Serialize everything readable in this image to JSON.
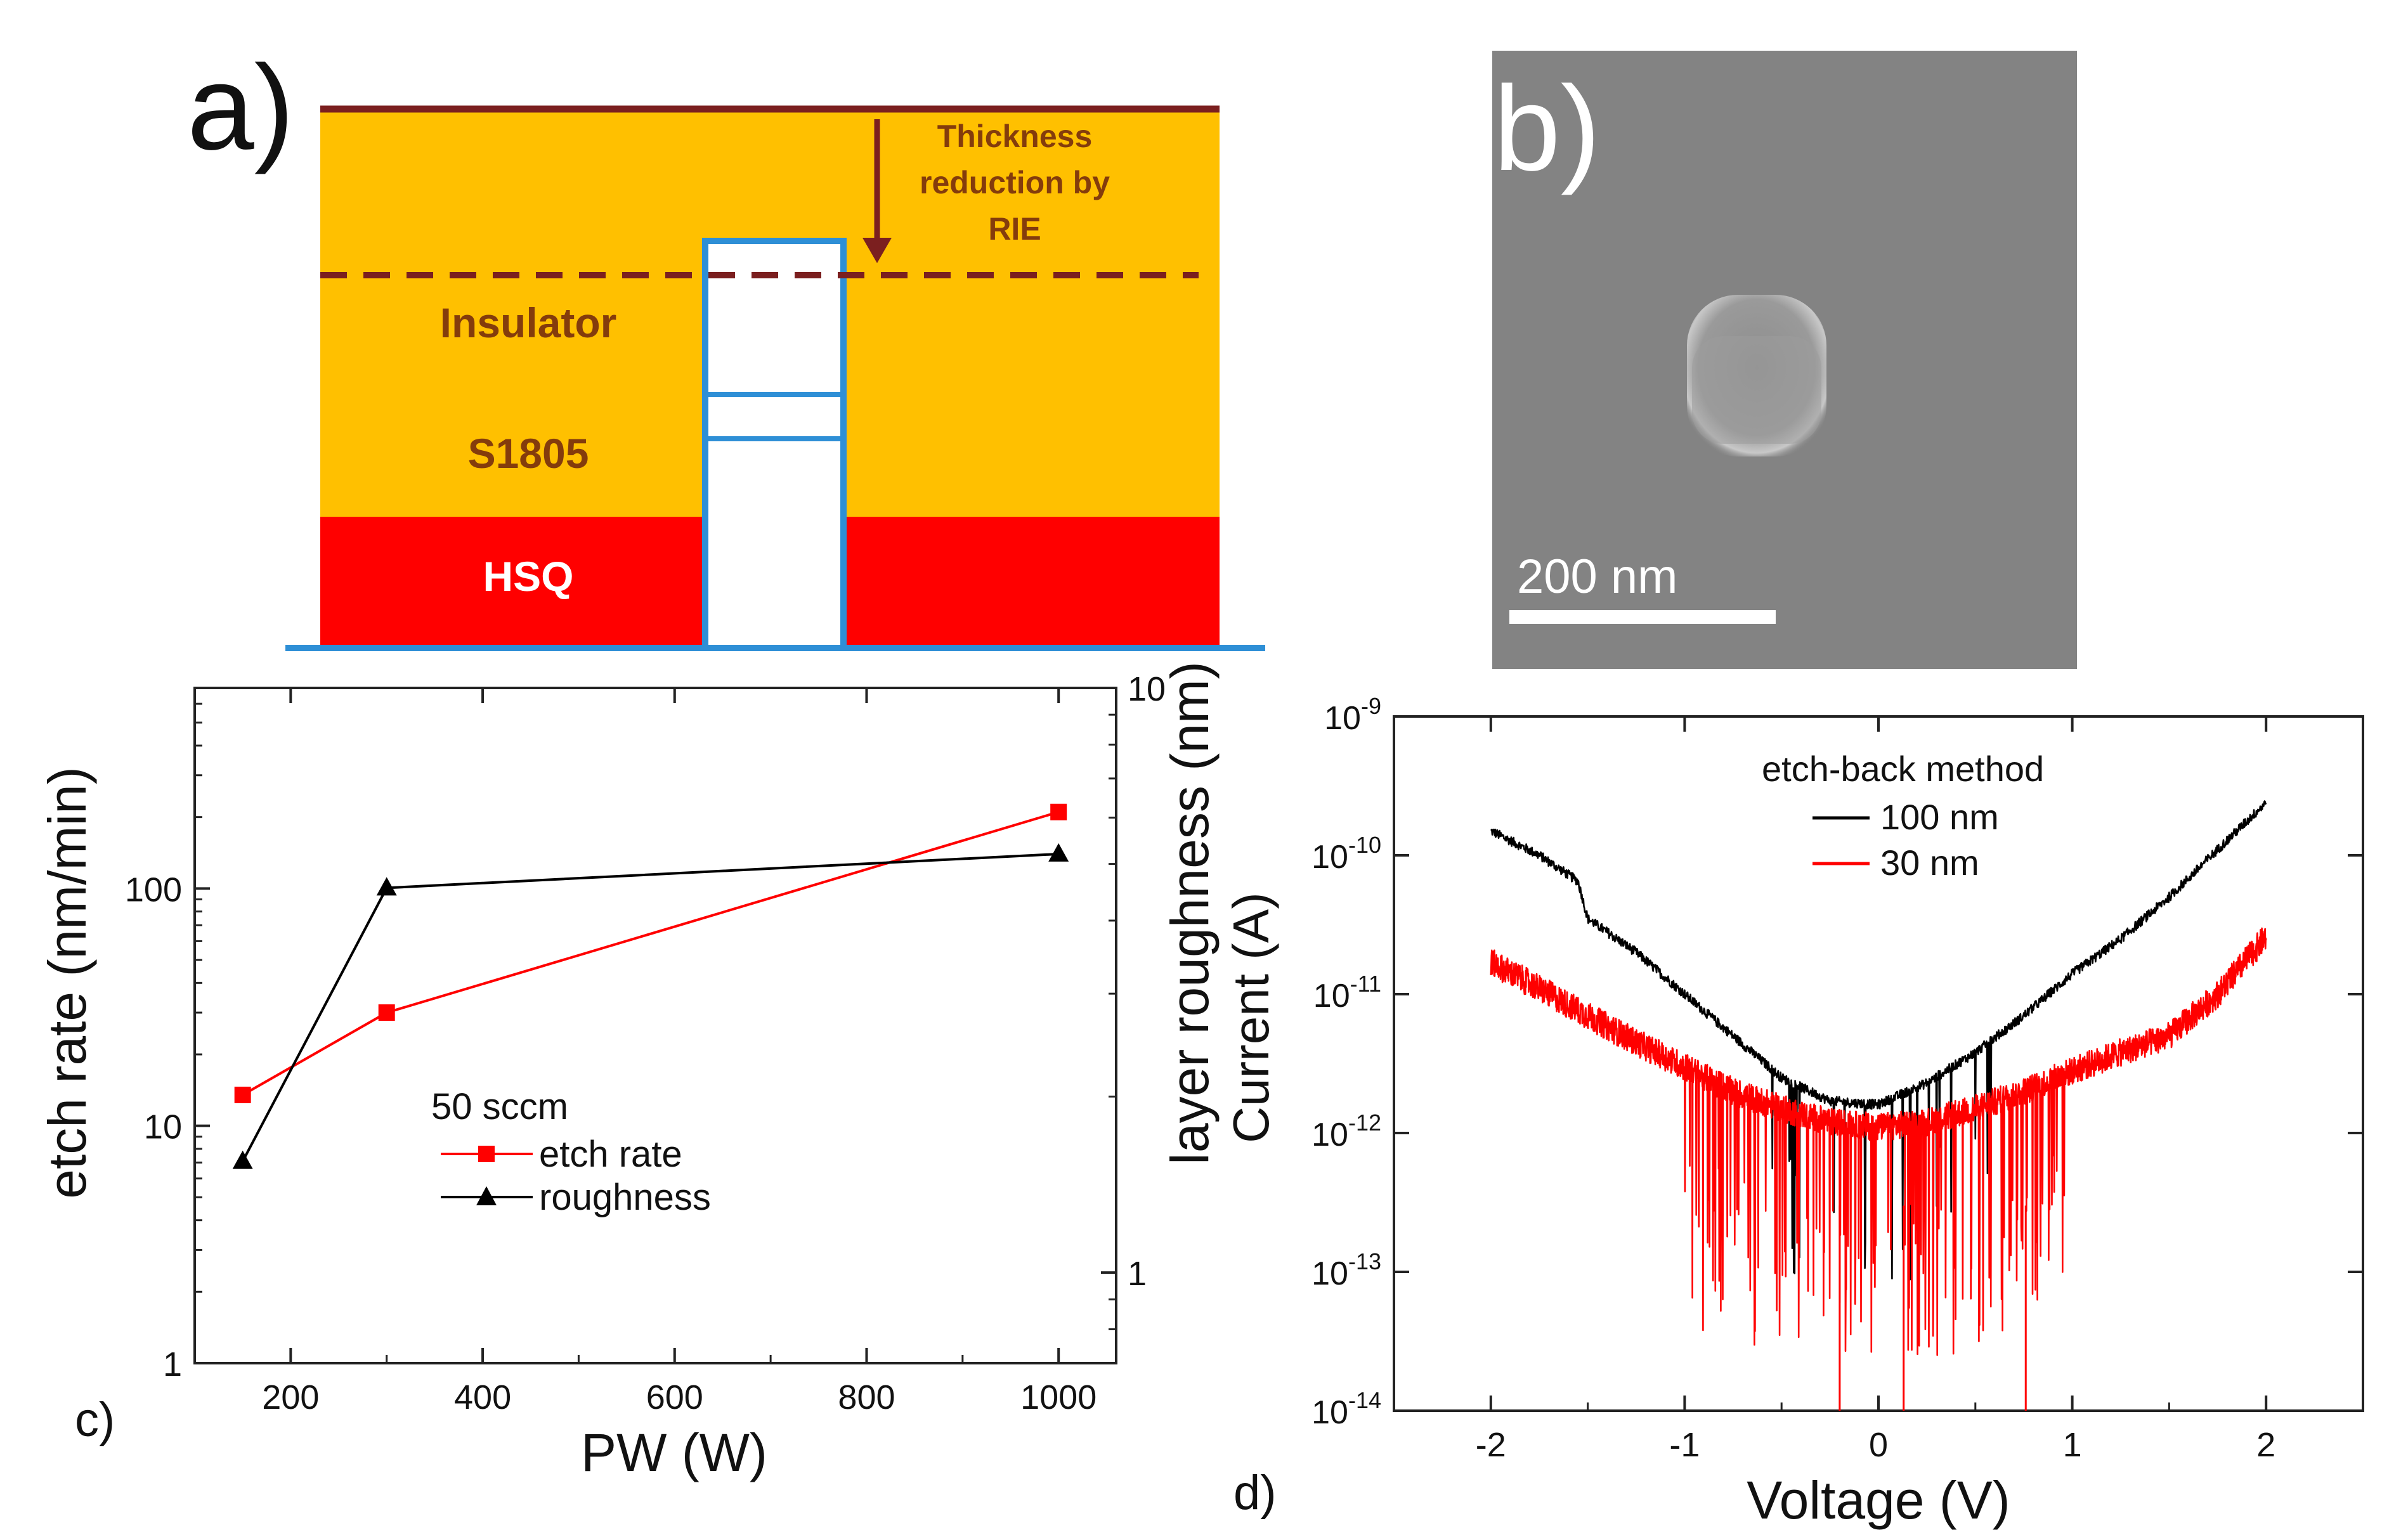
{
  "colors": {
    "insulator_fill": "#FFC000",
    "hsq_fill": "#FF0000",
    "pillar_outline": "#2E8FD6",
    "dark_red_text": "#843C0C",
    "top_line": "#7B1F1F",
    "sem_background": "#838383",
    "etch_rate_series": "#ff0000",
    "roughness_series": "#000000"
  },
  "panel_a": {
    "label": "a)",
    "annotation_line1": "Thickness",
    "annotation_line2": "reduction by",
    "annotation_line3": "RIE",
    "layer_insulator": "Insulator",
    "layer_s1805": "S1805",
    "layer_hsq": "HSQ"
  },
  "panel_b": {
    "label": "b)",
    "scale_bar_text": "200 nm"
  },
  "chart_data": [
    {
      "panel": "c)",
      "type": "line",
      "xlabel": "PW (W)",
      "ylabel": "etch rate (nm/min)",
      "y2label": "layer roughness (nm)",
      "xlim": [
        100,
        1060
      ],
      "xticks": [
        200,
        400,
        600,
        800,
        1000
      ],
      "yscale": "log",
      "ylim": [
        1,
        700
      ],
      "yticks": [
        1,
        10,
        100
      ],
      "y2scale": "log",
      "y2lim": [
        0.7,
        10
      ],
      "y2ticks": [
        1,
        10
      ],
      "legend_title": "50 sccm",
      "series": [
        {
          "name": "etch rate",
          "axis": "left",
          "marker": "square",
          "color": "#ff0000",
          "x": [
            150,
            300,
            1000
          ],
          "y": [
            13.5,
            30,
            210
          ]
        },
        {
          "name": "roughness",
          "axis": "right",
          "marker": "triangle",
          "color": "#000000",
          "x": [
            150,
            300,
            1000
          ],
          "y": [
            1.55,
            4.55,
            5.2
          ]
        }
      ]
    },
    {
      "panel": "d)",
      "type": "line",
      "xlabel": "Voltage (V)",
      "ylabel": "Current (A)",
      "xlim": [
        -2.5,
        2.5
      ],
      "xticks": [
        -2,
        -1,
        0,
        1,
        2
      ],
      "yscale": "log",
      "ylim": [
        "1e-14",
        "1e-9"
      ],
      "yticks": [
        {
          "base": "10",
          "exp": "-14"
        },
        {
          "base": "10",
          "exp": "-13"
        },
        {
          "base": "10",
          "exp": "-12"
        },
        {
          "base": "10",
          "exp": "-11"
        },
        {
          "base": "10",
          "exp": "-10"
        },
        {
          "base": "10",
          "exp": "-9"
        }
      ],
      "legend_title": "etch-back method",
      "series": [
        {
          "name": "100 nm",
          "color": "#000000",
          "x": [
            -2.0,
            -1.75,
            -1.55,
            -1.5,
            -1.25,
            -1.0,
            -0.75,
            -0.5,
            -0.25,
            0.0,
            0.25,
            0.5,
            0.75,
            1.0,
            1.25,
            1.5,
            1.75,
            2.0
          ],
          "y": [
            1.5e-10,
            1e-10,
            6.5e-11,
            3.5e-11,
            2e-11,
            1e-11,
            5e-12,
            2.5e-12,
            1.7e-12,
            1.6e-12,
            2.3e-12,
            3.8e-12,
            7e-12,
            1.4e-11,
            2.5e-11,
            5e-11,
            1.1e-10,
            2.4e-10
          ]
        },
        {
          "name": "30 nm",
          "color": "#ff0000",
          "x": [
            -2.0,
            -1.75,
            -1.5,
            -1.25,
            -1.0,
            -0.75,
            -0.5,
            -0.25,
            0.0,
            0.25,
            0.5,
            0.75,
            1.0,
            1.25,
            1.5,
            1.75,
            2.0
          ],
          "y": [
            1.7e-11,
            1.1e-11,
            7e-12,
            4.5e-12,
            3e-12,
            2e-12,
            1.5e-12,
            1.2e-12,
            1.1e-12,
            1.2e-12,
            1.5e-12,
            2e-12,
            2.8e-12,
            3.8e-12,
            5e-12,
            1e-11,
            2.6e-11
          ]
        }
      ]
    }
  ]
}
